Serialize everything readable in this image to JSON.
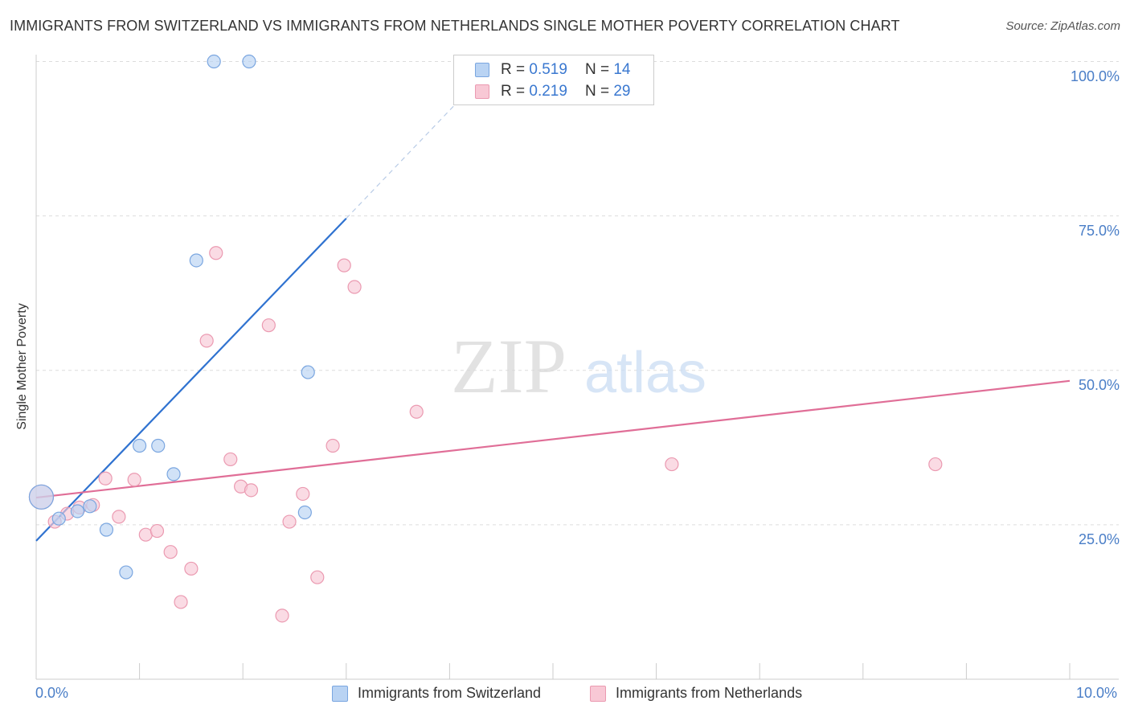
{
  "title": "IMMIGRANTS FROM SWITZERLAND VS IMMIGRANTS FROM NETHERLANDS SINGLE MOTHER POVERTY CORRELATION CHART",
  "source": "Source: ZipAtlas.com",
  "watermark": {
    "zip": "ZIP",
    "atlas": "atlas"
  },
  "legend": {
    "r_label": "R =",
    "n_label": "N =",
    "items": [
      {
        "r": "0.519",
        "n": "14"
      },
      {
        "r": "0.219",
        "n": "29"
      }
    ]
  },
  "colors": {
    "switzerland_fill": "#b9d3f3",
    "switzerland_stroke": "#7aa6e0",
    "switzerland_line": "#2f72d0",
    "netherlands_fill": "#f8c8d5",
    "netherlands_stroke": "#eb9ab1",
    "netherlands_line": "#e06e97",
    "tick_label": "#4a7ec7",
    "grid": "#dddddd"
  },
  "chart_data": {
    "type": "scatter",
    "title": "IMMIGRANTS FROM SWITZERLAND VS IMMIGRANTS FROM NETHERLANDS SINGLE MOTHER POVERTY CORRELATION CHART",
    "xlabel": "",
    "ylabel": "Single Mother Poverty",
    "xlim": [
      0,
      10
    ],
    "ylim": [
      0,
      101.5
    ],
    "x_tick_labels": [
      "0.0%",
      "10.0%"
    ],
    "y_ticks": [
      {
        "value": 25,
        "label": "25.0%"
      },
      {
        "value": 50,
        "label": "50.0%"
      },
      {
        "value": 75,
        "label": "75.0%"
      },
      {
        "value": 100,
        "label": "100.0%"
      }
    ],
    "grid": true,
    "legend_position": "bottom",
    "series": [
      {
        "name": "Immigrants from Switzerland",
        "r": 0.519,
        "n": 14,
        "trend": {
          "x0": 0,
          "y0": 22.4,
          "x1": 3.0,
          "y1": 74.6,
          "dashed_to_x": 4.2,
          "dashed_to_y": 95.6
        },
        "points": [
          {
            "x": 0.05,
            "y": 29.5,
            "big": true
          },
          {
            "x": 0.22,
            "y": 26.0
          },
          {
            "x": 0.4,
            "y": 27.2
          },
          {
            "x": 0.52,
            "y": 28.0
          },
          {
            "x": 0.68,
            "y": 24.2
          },
          {
            "x": 0.87,
            "y": 17.3
          },
          {
            "x": 1.0,
            "y": 37.8
          },
          {
            "x": 1.18,
            "y": 37.8
          },
          {
            "x": 1.33,
            "y": 33.2
          },
          {
            "x": 1.55,
            "y": 67.8
          },
          {
            "x": 1.72,
            "y": 100.0
          },
          {
            "x": 2.06,
            "y": 100.0
          },
          {
            "x": 2.6,
            "y": 27.0
          },
          {
            "x": 2.63,
            "y": 49.7
          }
        ]
      },
      {
        "name": "Immigrants from Netherlands",
        "r": 0.219,
        "n": 29,
        "trend": {
          "x0": 0,
          "y0": 29.4,
          "x1": 10,
          "y1": 48.3
        },
        "points": [
          {
            "x": 0.05,
            "y": 29.5,
            "big": true
          },
          {
            "x": 0.18,
            "y": 25.5
          },
          {
            "x": 0.3,
            "y": 26.8
          },
          {
            "x": 0.42,
            "y": 27.8
          },
          {
            "x": 0.55,
            "y": 28.2
          },
          {
            "x": 0.67,
            "y": 32.5
          },
          {
            "x": 0.8,
            "y": 26.3
          },
          {
            "x": 0.95,
            "y": 32.3
          },
          {
            "x": 1.06,
            "y": 23.4
          },
          {
            "x": 1.17,
            "y": 24.0
          },
          {
            "x": 1.3,
            "y": 20.6
          },
          {
            "x": 1.4,
            "y": 12.5
          },
          {
            "x": 1.5,
            "y": 17.9
          },
          {
            "x": 1.65,
            "y": 54.8
          },
          {
            "x": 1.74,
            "y": 69.0
          },
          {
            "x": 1.88,
            "y": 35.6
          },
          {
            "x": 1.98,
            "y": 31.2
          },
          {
            "x": 2.08,
            "y": 30.6
          },
          {
            "x": 2.25,
            "y": 57.3
          },
          {
            "x": 2.38,
            "y": 10.3
          },
          {
            "x": 2.45,
            "y": 25.5
          },
          {
            "x": 2.58,
            "y": 30.0
          },
          {
            "x": 2.72,
            "y": 16.5
          },
          {
            "x": 2.87,
            "y": 37.8
          },
          {
            "x": 2.98,
            "y": 67.0
          },
          {
            "x": 3.08,
            "y": 63.5
          },
          {
            "x": 3.68,
            "y": 43.3
          },
          {
            "x": 6.15,
            "y": 34.8
          },
          {
            "x": 8.7,
            "y": 34.8
          }
        ]
      }
    ]
  }
}
